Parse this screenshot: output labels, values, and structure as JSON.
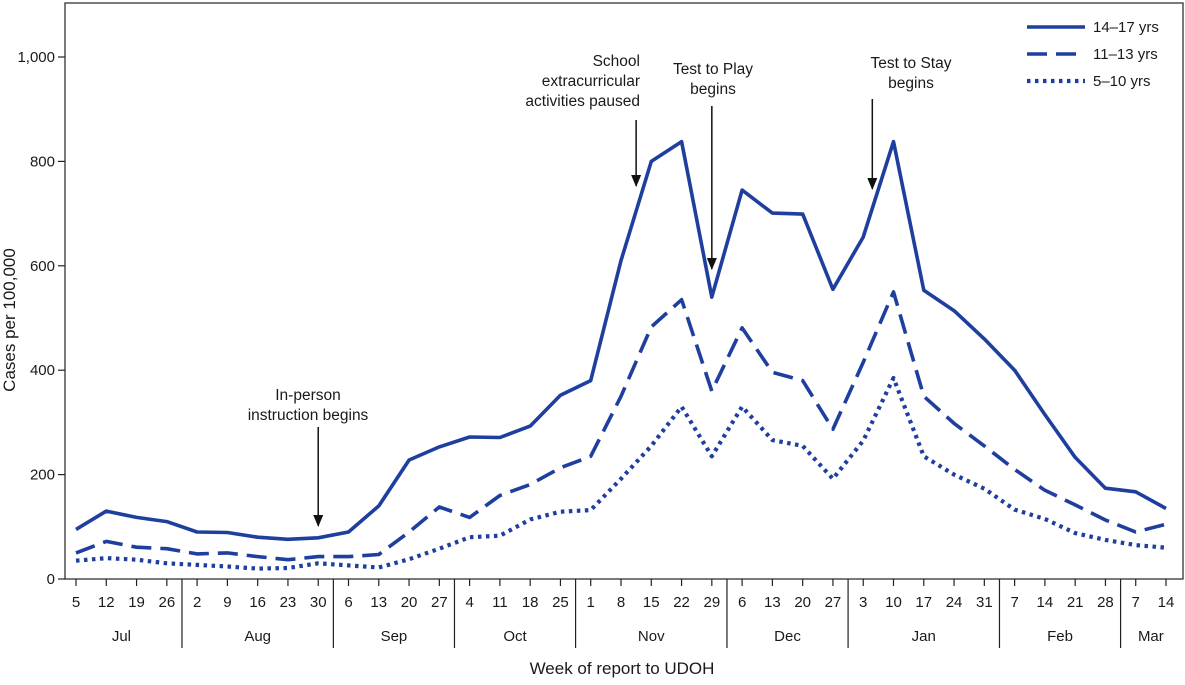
{
  "chart_data": {
    "type": "line",
    "xlabel": "Week of report to UDOH",
    "ylabel": "Cases per 100,000",
    "ylim": [
      0,
      1000
    ],
    "yticks": [
      0,
      200,
      400,
      600,
      800,
      1000
    ],
    "ytick_labels": [
      "0",
      "200",
      "400",
      "600",
      "800",
      "1,000"
    ],
    "x": [
      "5",
      "12",
      "19",
      "26",
      "2",
      "9",
      "16",
      "23",
      "30",
      "6",
      "13",
      "20",
      "27",
      "4",
      "11",
      "18",
      "25",
      "1",
      "8",
      "15",
      "22",
      "29",
      "6",
      "13",
      "20",
      "27",
      "3",
      "10",
      "17",
      "24",
      "31",
      "7",
      "14",
      "21",
      "28",
      "7",
      "14"
    ],
    "months": [
      {
        "label": "Jul",
        "start": 0,
        "end": 3
      },
      {
        "label": "Aug",
        "start": 4,
        "end": 8
      },
      {
        "label": "Sep",
        "start": 9,
        "end": 12
      },
      {
        "label": "Oct",
        "start": 13,
        "end": 16
      },
      {
        "label": "Nov",
        "start": 17,
        "end": 21
      },
      {
        "label": "Dec",
        "start": 22,
        "end": 25
      },
      {
        "label": "Jan",
        "start": 26,
        "end": 30
      },
      {
        "label": "Feb",
        "start": 31,
        "end": 34
      },
      {
        "label": "Mar",
        "start": 35,
        "end": 36
      }
    ],
    "series": [
      {
        "name": "14–17 yrs",
        "style": "solid",
        "color": "#1f3f9f",
        "values": [
          95,
          130,
          118,
          110,
          90,
          89,
          80,
          76,
          79,
          90,
          140,
          228,
          253,
          272,
          271,
          293,
          352,
          380,
          610,
          800,
          838,
          540,
          745,
          701,
          699,
          555,
          655,
          838,
          553,
          514,
          460,
          400,
          315,
          233,
          174,
          167,
          135
        ]
      },
      {
        "name": "11–13 yrs",
        "style": "dashed",
        "color": "#1f3f9f",
        "values": [
          50,
          72,
          61,
          58,
          48,
          50,
          43,
          37,
          43,
          43,
          47,
          90,
          138,
          118,
          160,
          181,
          213,
          235,
          350,
          483,
          535,
          360,
          481,
          396,
          380,
          287,
          415,
          550,
          350,
          298,
          255,
          210,
          170,
          142,
          113,
          90,
          105
        ]
      },
      {
        "name": "5–10 yrs",
        "style": "dotted",
        "color": "#1f3f9f",
        "values": [
          35,
          40,
          37,
          30,
          27,
          24,
          20,
          21,
          30,
          26,
          22,
          38,
          58,
          80,
          83,
          114,
          129,
          132,
          192,
          255,
          330,
          235,
          330,
          266,
          255,
          192,
          265,
          385,
          235,
          200,
          173,
          133,
          115,
          88,
          75,
          65,
          60
        ]
      }
    ],
    "annotations": [
      {
        "lines": [
          "In-person",
          "instruction begins"
        ],
        "index": 8
      },
      {
        "lines": [
          "School",
          "extracurricular",
          "activities paused"
        ],
        "index": 18.5
      },
      {
        "lines": [
          "Test to Play",
          "begins"
        ],
        "index": 21
      },
      {
        "lines": [
          "Test to Stay",
          "begins"
        ],
        "index": 26.3
      }
    ],
    "legend_position": "top-right",
    "grid": false
  }
}
